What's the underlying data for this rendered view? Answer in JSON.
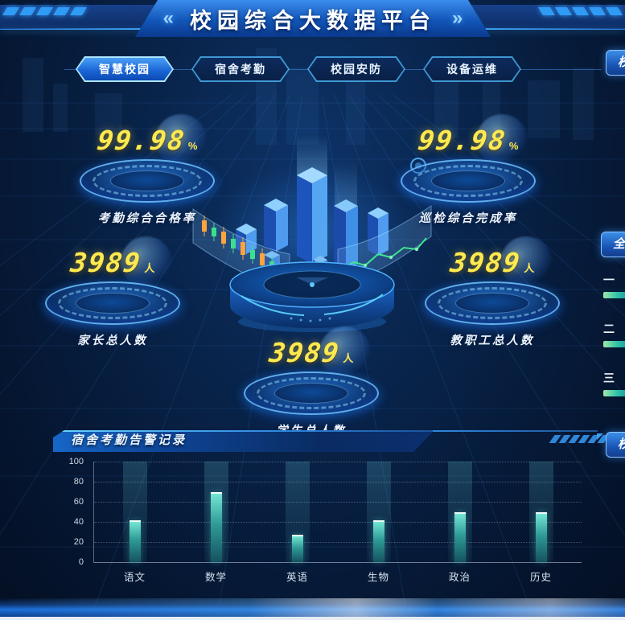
{
  "header": {
    "title": "校园综合大数据平台",
    "left_decor": "«",
    "right_decor": "»"
  },
  "tabs": [
    {
      "label": "智慧校园",
      "active": true
    },
    {
      "label": "宿舍考勤",
      "active": false
    },
    {
      "label": "校园安防",
      "active": false
    },
    {
      "label": "设备运维",
      "active": false
    }
  ],
  "stats": {
    "attendance_rate": {
      "value": "99.98",
      "unit": "%",
      "label": "考勤综合合格率"
    },
    "inspection_rate": {
      "value": "99.98",
      "unit": "%",
      "label": "巡检综合完成率"
    },
    "parents_total": {
      "value": "3989",
      "unit": "人",
      "label": "家长总人数"
    },
    "staff_total": {
      "value": "3989",
      "unit": "人",
      "label": "教职工总人数"
    },
    "students_total": {
      "value": "3989",
      "unit": "人",
      "label": "学生总人数"
    }
  },
  "alarm_panel": {
    "title": "宿舍考勤告警记录"
  },
  "chart_data": {
    "type": "bar",
    "title": "宿舍考勤告警记录",
    "categories": [
      "语文",
      "数学",
      "英语",
      "生物",
      "政治",
      "历史"
    ],
    "values": [
      42,
      70,
      27,
      42,
      50,
      50
    ],
    "xlabel": "",
    "ylabel": "",
    "ylim": [
      0,
      100
    ],
    "yticks": [
      0,
      20,
      40,
      60,
      80,
      100
    ],
    "grid": "dotted-horizontal",
    "legend": "none",
    "bar_color": "#5fd8c8"
  },
  "right_edge": {
    "top_panel_label": "校",
    "middle_panel_label": "全",
    "bottom_panel_label": "校",
    "ranking": [
      {
        "rank": "一"
      },
      {
        "rank": "二"
      },
      {
        "rank": "三"
      }
    ]
  },
  "colors": {
    "accent_cyan": "#39c9ff",
    "accent_blue": "#1f7ae0",
    "number_yellow": "#ffe94f",
    "bar_teal": "#5fd8c8",
    "background": "#071e40"
  }
}
